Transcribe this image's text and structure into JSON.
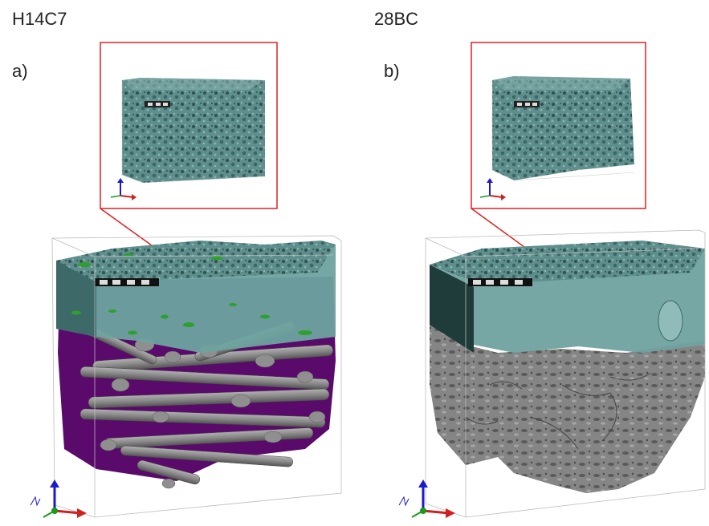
{
  "panels": [
    {
      "sample": "H14C7",
      "letter": "a)"
    },
    {
      "sample": "28BC",
      "letter": "b)"
    }
  ],
  "colors": {
    "inset_border": "#e02020",
    "callout_line": "#e02020",
    "ionomer": "#5f8f8d",
    "ionomer_dark": "#2f5250",
    "fiber_gray": "#8a8a8a",
    "fiber_dark": "#5a5a5a",
    "green_phase": "#2ea02e",
    "purple_phase": "#5a0a6a",
    "axis_x": "#d02020",
    "axis_y": "#1a9a1a",
    "axis_z": "#1a1ad0"
  }
}
